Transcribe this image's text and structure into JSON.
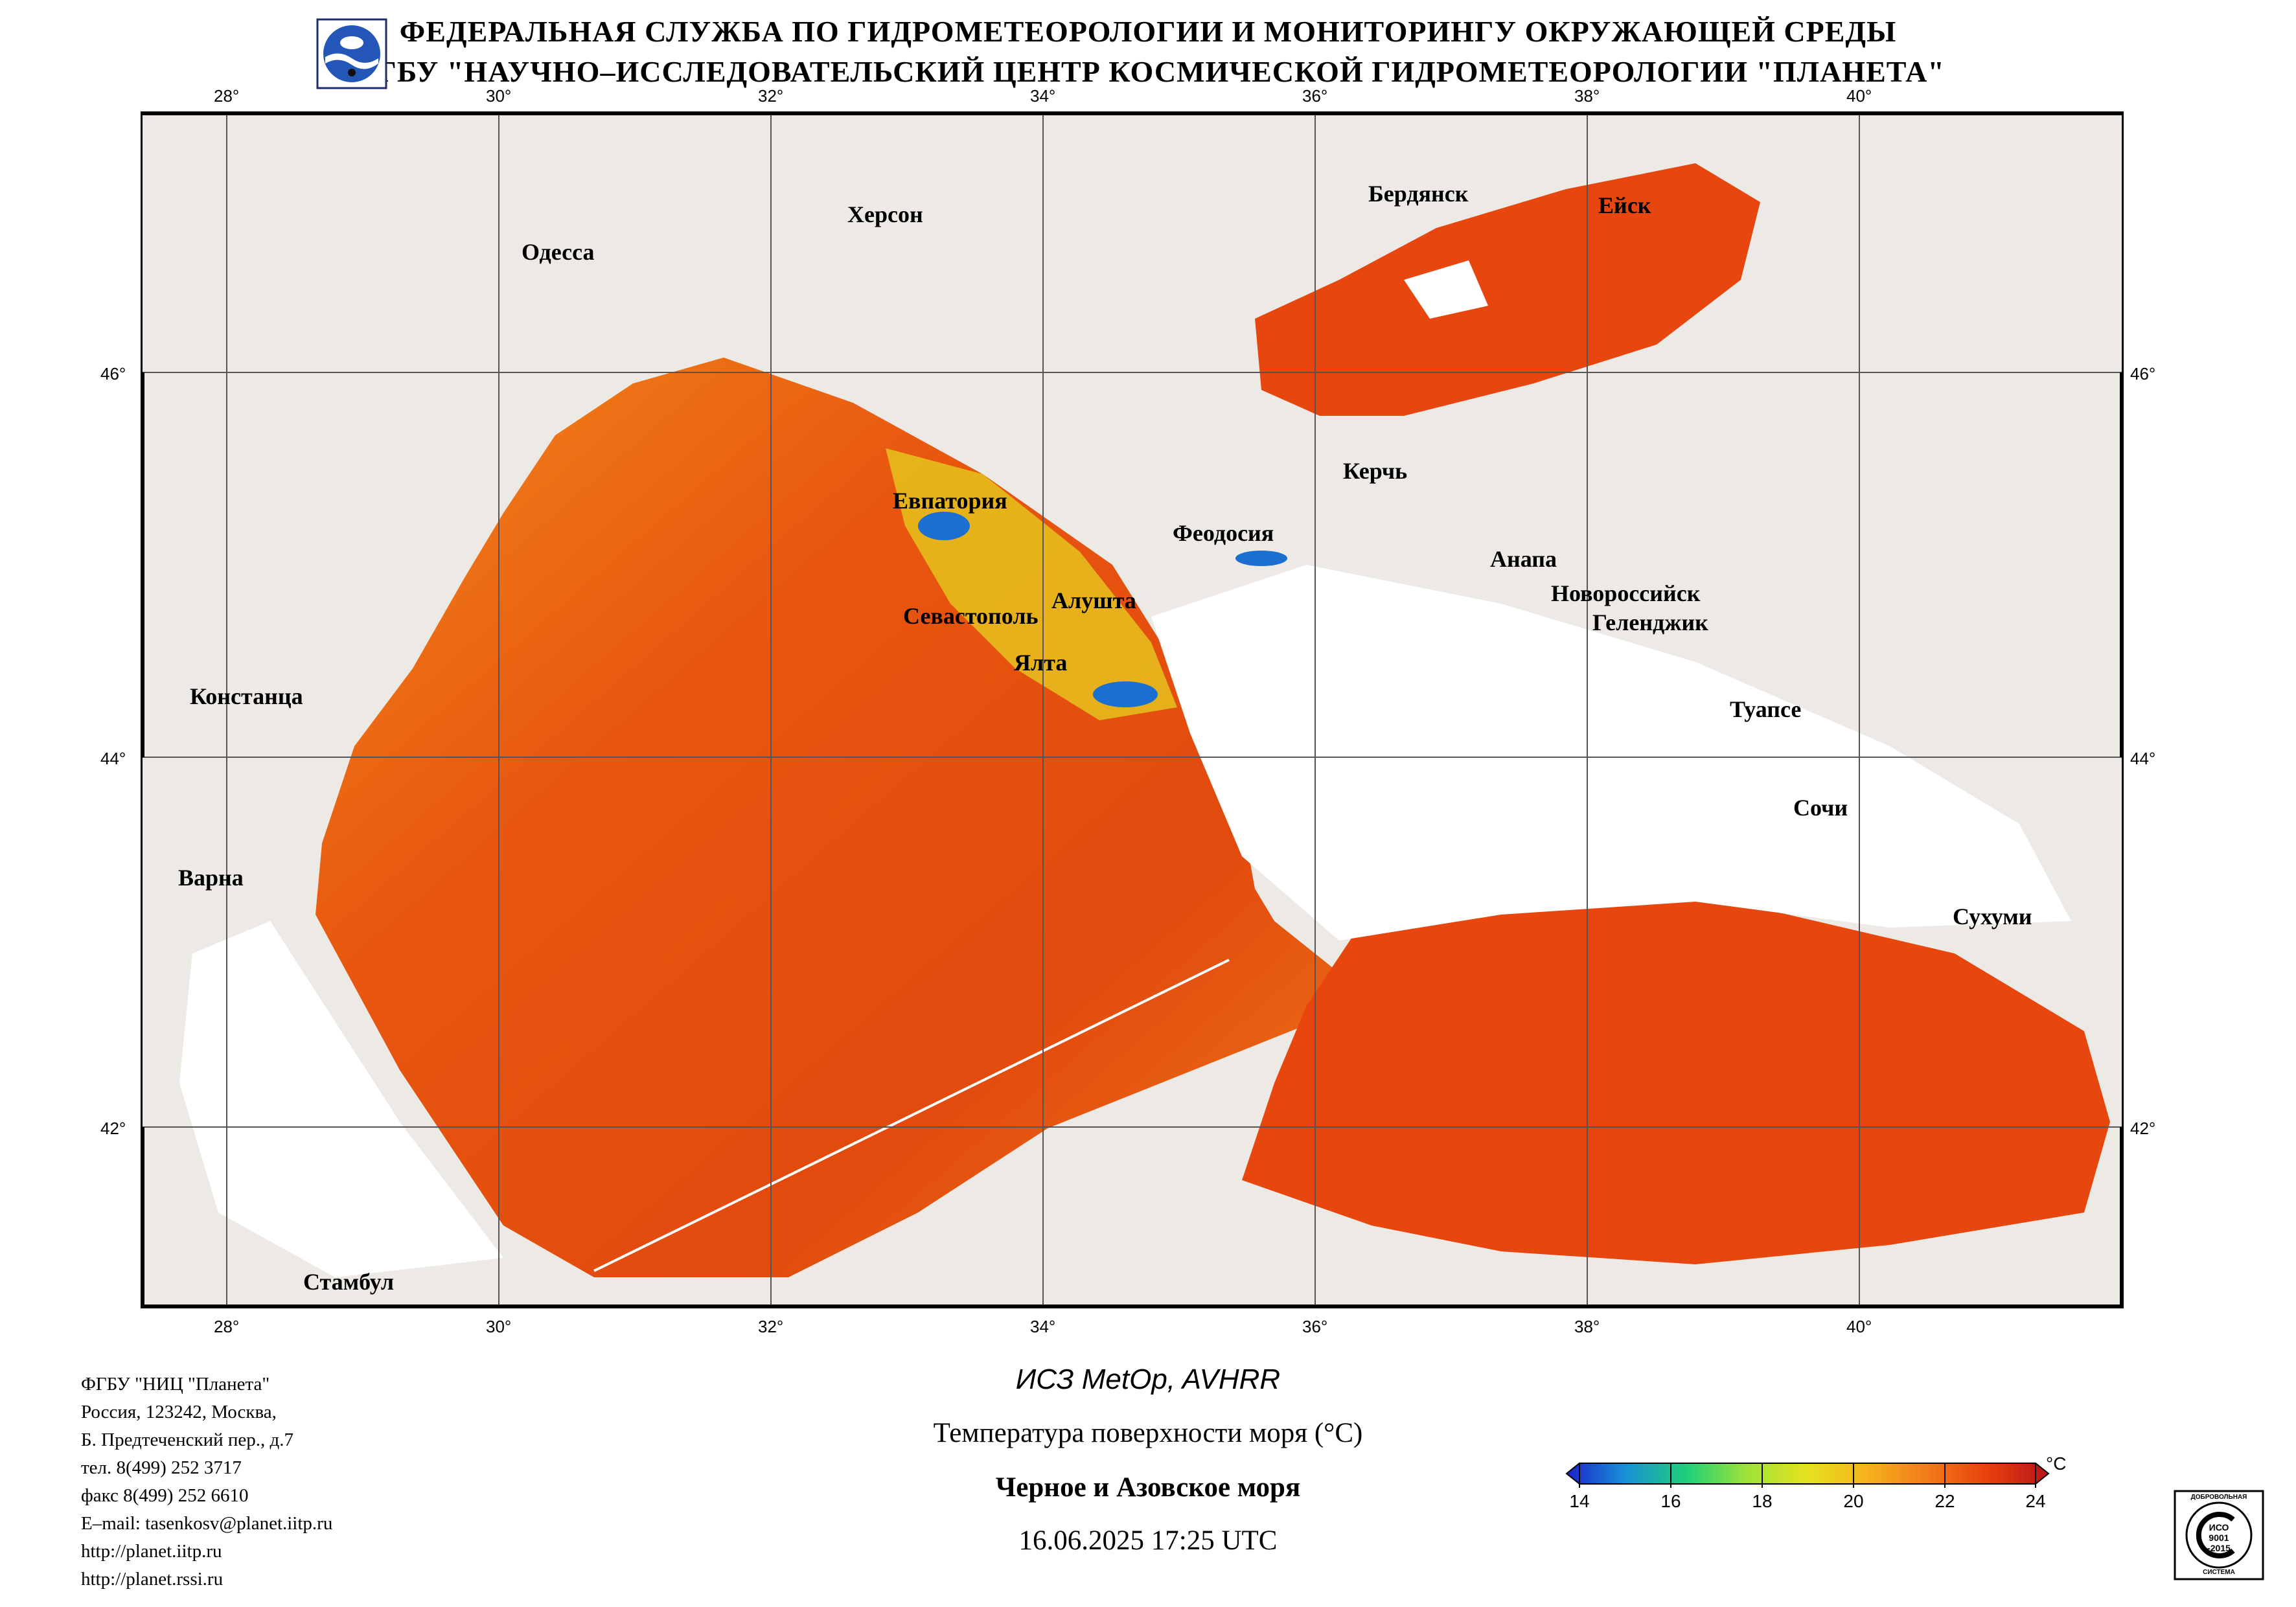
{
  "header": {
    "line1": "ФЕДЕРАЛЬНАЯ СЛУЖБА ПО ГИДРОМЕТЕОРОЛОГИИ И МОНИТОРИНГУ ОКРУЖАЮЩЕЙ СРЕДЫ",
    "line2": "ФГБУ \"НАУЧНО–ИССЛЕДОВАТЕЛЬСКИЙ ЦЕНТР КОСМИЧЕСКОЙ ГИДРОМЕТЕОРОЛОГИИ \"ПЛАНЕТА\""
  },
  "map": {
    "lon_labels": [
      "28°",
      "30°",
      "32°",
      "34°",
      "36°",
      "38°",
      "40°"
    ],
    "lat_labels": [
      "46°",
      "44°",
      "42°"
    ],
    "cities": [
      "Херсон",
      "Одесса",
      "Бердянск",
      "Ейск",
      "Евпатория",
      "Керчь",
      "Феодосия",
      "Анапа",
      "Новороссийск",
      "Геленджик",
      "Алушта",
      "Севастополь",
      "Ялта",
      "Констанца",
      "Туапсе",
      "Сочи",
      "Варна",
      "Сухуми",
      "Стамбул"
    ],
    "colors": {
      "land": "#edeae6",
      "cloud": "#ffffff",
      "sea_warm": "#e8460f",
      "sea_mid": "#f28a1c",
      "sea_cool": "#d9e22a",
      "sea_cold": "#1a6fd0",
      "grid": "#555555",
      "border": "#000000"
    }
  },
  "footer": {
    "org": "ФГБУ \"НИЦ \"Планета\"",
    "address1": "Россия, 123242, Москва,",
    "address2": "Б. Предтеченский пер., д.7",
    "tel": "тел. 8(499) 252 3717",
    "fax": "факс 8(499) 252 6610",
    "email": "E–mail: tasenkosv@planet.iitp.ru",
    "url1": "http://planet.iitp.ru",
    "url2": "http://planet.rssi.ru"
  },
  "caption": {
    "satellite": "ИСЗ MetOp, AVHRR",
    "parameter": "Температура поверхности моря (°C)",
    "region": "Черное и Азовское моря",
    "datetime": "16.06.2025 17:25 UTC"
  },
  "colorbar": {
    "unit": "°C",
    "ticks": [
      "14",
      "16",
      "18",
      "20",
      "22",
      "24"
    ],
    "min": 14,
    "max": 24,
    "gradient": [
      "#1a23c8",
      "#1a8fd8",
      "#1fd07a",
      "#9be23a",
      "#e6e21f",
      "#f5b41c",
      "#f27a1a",
      "#e8420f",
      "#b8141a"
    ]
  },
  "badge": {
    "top": "ДОБРОВОЛЬНАЯ",
    "mid1": "ИСО",
    "mid2": "9001",
    "mid3": "-2015",
    "bottom": "СИСТЕМА"
  }
}
